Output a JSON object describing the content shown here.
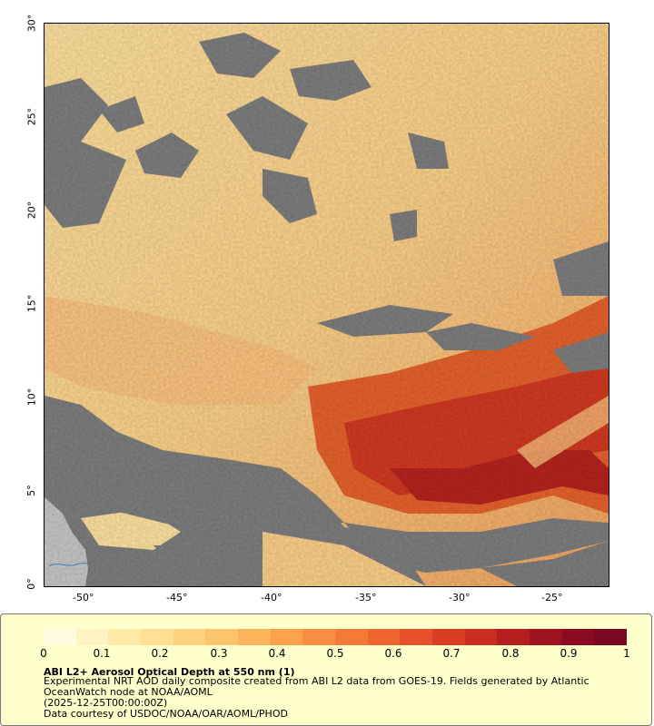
{
  "map": {
    "y_ticks": [
      "30°",
      "25°",
      "20°",
      "15°",
      "10°",
      "5°",
      "0°"
    ],
    "x_ticks": [
      "-50°",
      "-45°",
      "-40°",
      "-35°",
      "-30°",
      "-25°"
    ],
    "colors": {
      "no_data": "#7f7f7f",
      "land": "#c8c8c8",
      "river": "#4a90c8",
      "aod_low": "#ffe7a8",
      "aod_mid": "#fdae61",
      "aod_high": "#d7301f"
    }
  },
  "legend": {
    "ticks": [
      "0",
      "0.1",
      "0.2",
      "0.3",
      "0.4",
      "0.5",
      "0.6",
      "0.7",
      "0.8",
      "0.9",
      "1"
    ],
    "title": "ABI L2+ Aerosol Optical Depth at 550 nm (1)",
    "line1": "Experimental NRT AOD daily composite created from ABI L2 data from GOES-19. Fields generated by Atlantic",
    "line2": "OceanWatch node at NOAA/AOML",
    "line3": "(2025-12-25T00:00:00Z)",
    "line4": "Data courtesy of USDOC/NOAA/OAR/AOML/PHOD",
    "palette": [
      "#fffbe0",
      "#fff3c4",
      "#ffeaa8",
      "#ffdf94",
      "#ffd27f",
      "#fec46c",
      "#fdb55c",
      "#fca24d",
      "#f98e42",
      "#f57a38",
      "#ef6530",
      "#e6502a",
      "#d93d24",
      "#c92c20",
      "#b51e1f",
      "#9f121f",
      "#8a0a22",
      "#7a0525"
    ]
  }
}
